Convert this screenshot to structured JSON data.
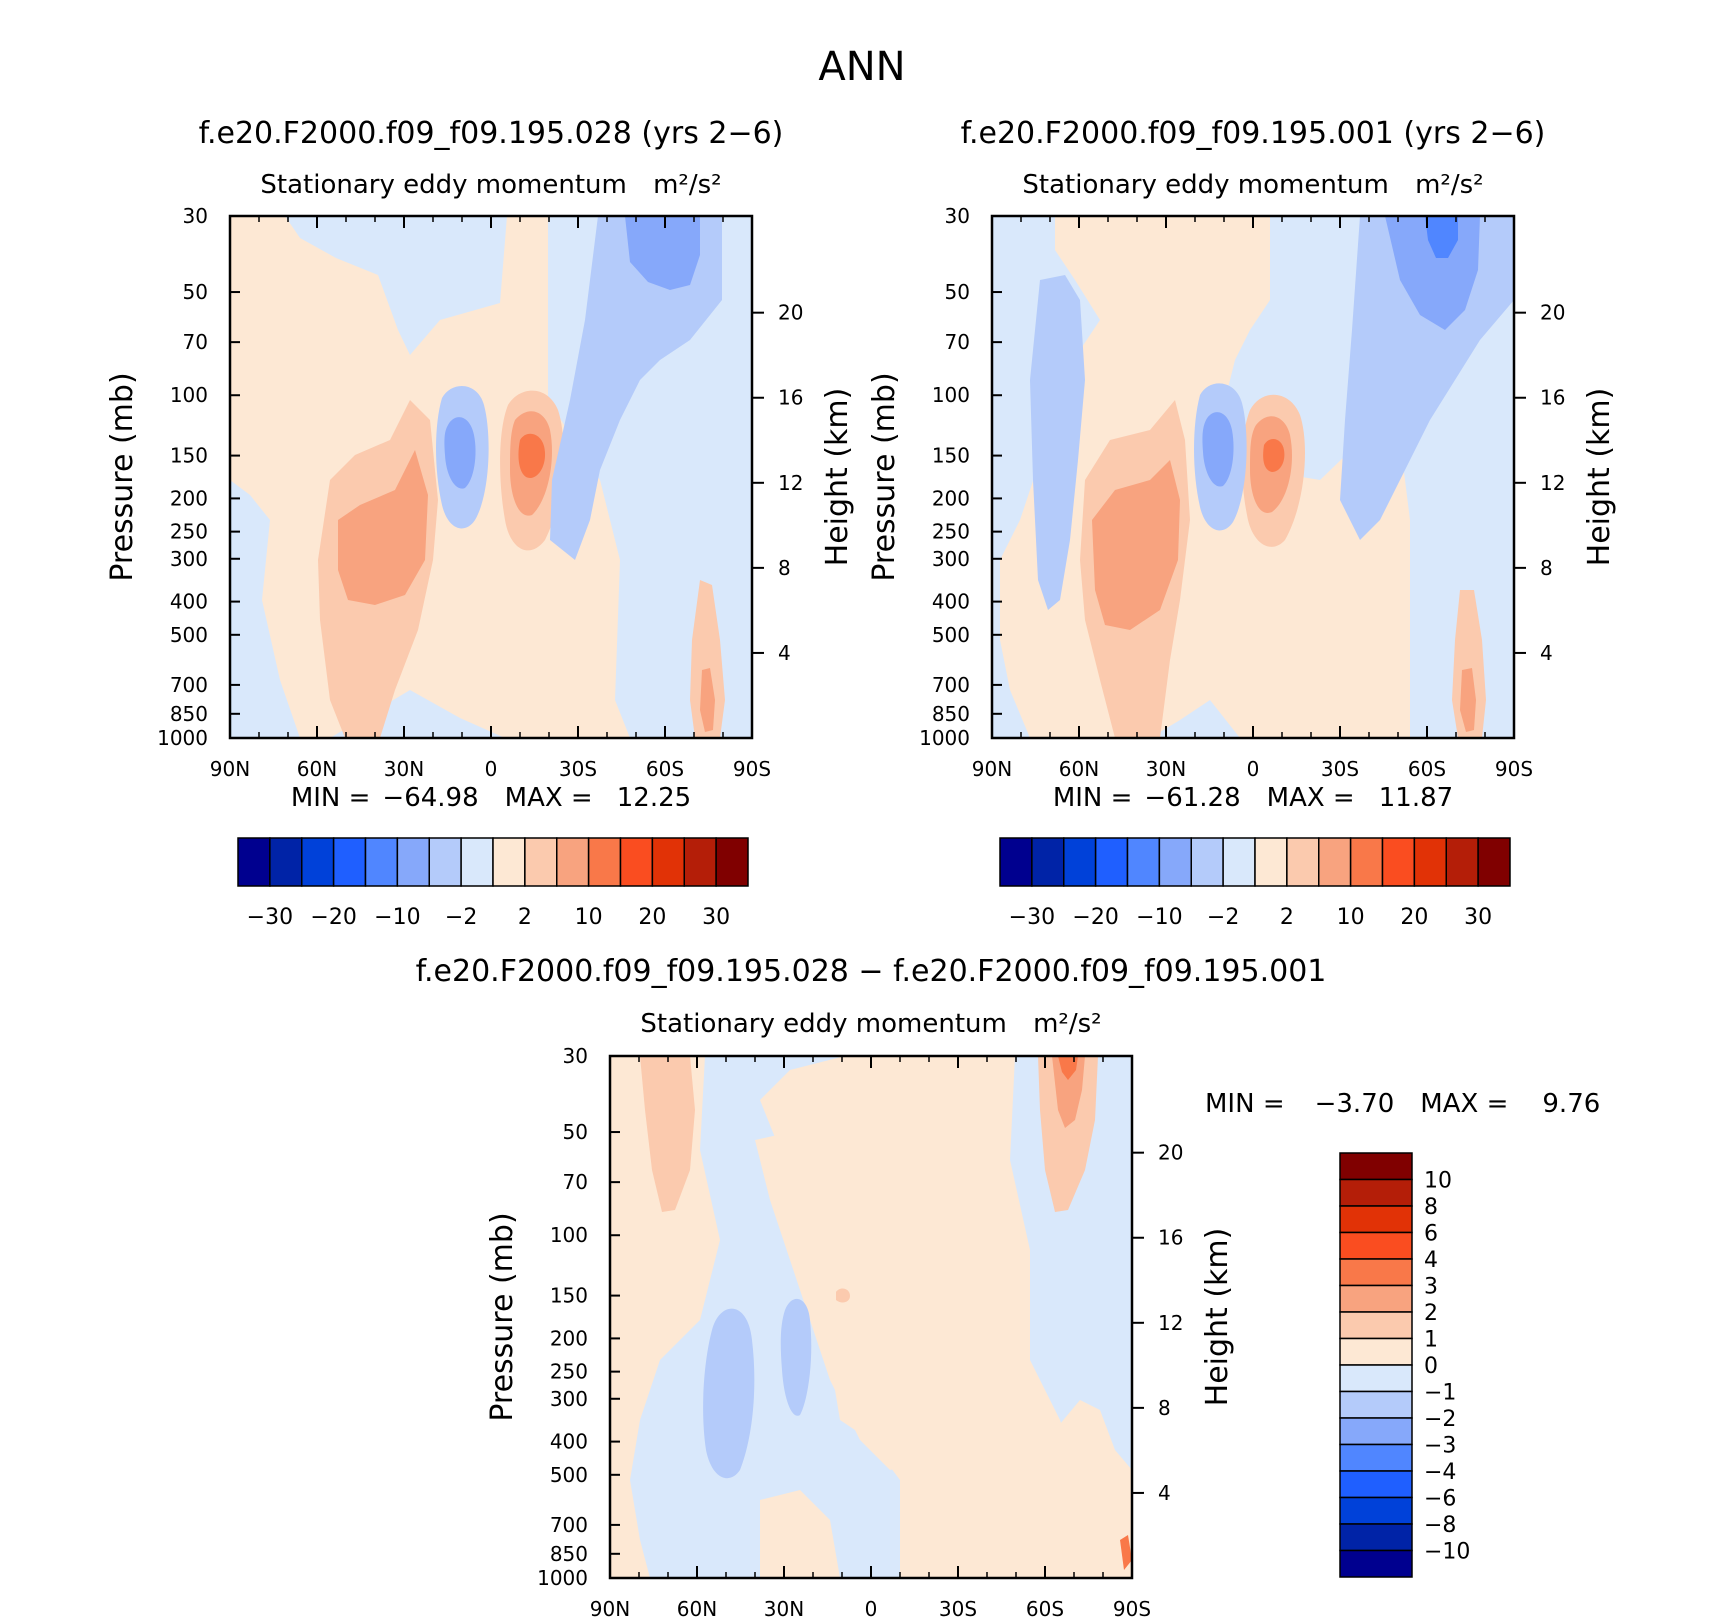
{
  "page_title": "ANN",
  "panels": [
    {
      "id": "case",
      "title": "f.e20.F2000.f09_f09.195.028 (yrs 2−6)",
      "subtitle": "Stationary eddy momentum",
      "units": "m²/s²",
      "min_label": "MIN =",
      "min_value": "−64.98",
      "max_label": "MAX =",
      "max_value": "12.25",
      "colorbar_labels": [
        "−30",
        "−20",
        "−10",
        "−2",
        "2",
        "10",
        "20",
        "30"
      ]
    },
    {
      "id": "control",
      "title": "f.e20.F2000.f09_f09.195.001 (yrs 2−6)",
      "subtitle": "Stationary eddy momentum",
      "units": "m²/s²",
      "min_label": "MIN =",
      "min_value": "−61.28",
      "max_label": "MAX =",
      "max_value": "11.87",
      "colorbar_labels": [
        "−30",
        "−20",
        "−10",
        "−2",
        "2",
        "10",
        "20",
        "30"
      ]
    },
    {
      "id": "difference",
      "title": "f.e20.F2000.f09_f09.195.028 − f.e20.F2000.f09_f09.195.001",
      "subtitle": "Stationary eddy momentum",
      "units": "m²/s²",
      "min_label": "MIN =",
      "min_value": "−3.70",
      "max_label": "MAX =",
      "max_value": "9.76",
      "colorbar_labels": [
        "10",
        "8",
        "6",
        "4",
        "3",
        "2",
        "1",
        "0",
        "−1",
        "−2",
        "−3",
        "−4",
        "−6",
        "−8",
        "−10"
      ]
    }
  ],
  "chart_data": [
    {
      "type": "heatmap",
      "title": "f.e20.F2000.f09_f09.195.028 (yrs 2−6)",
      "xlabel": "",
      "ylabel": "Pressure (mb)",
      "y2label": "Height (km)",
      "x_ticks": [
        "90N",
        "60N",
        "30N",
        "0",
        "30S",
        "60S",
        "90S"
      ],
      "xlim": [
        90,
        -90
      ],
      "y_ticks": [
        30,
        50,
        70,
        100,
        150,
        200,
        250,
        300,
        400,
        500,
        700,
        850,
        1000
      ],
      "ylim": [
        1000,
        30
      ],
      "y_scale": "log",
      "y2_ticks": [
        4,
        8,
        12,
        16,
        20
      ],
      "min": -64.98,
      "max": 12.25,
      "features": [
        {
          "lat": 40,
          "p": 300,
          "value": 10,
          "lat_width": 14,
          "p_span": 1.4
        },
        {
          "lat": 35,
          "p": 200,
          "value": 5,
          "lat_width": 22,
          "p_span": 2.2
        },
        {
          "lat": -10,
          "p": 150,
          "value": 20,
          "lat_width": 8,
          "p_span": 0.5
        },
        {
          "lat": -10,
          "p": 150,
          "value": 10,
          "lat_width": 14,
          "p_span": 0.9
        },
        {
          "lat": 10,
          "p": 150,
          "value": -10,
          "lat_width": 8,
          "p_span": 0.5
        },
        {
          "lat": 10,
          "p": 150,
          "value": -2,
          "lat_width": 14,
          "p_span": 1.0
        },
        {
          "lat": -60,
          "p": 35,
          "value": -10,
          "lat_width": 16,
          "p_span": 0.6
        },
        {
          "lat": -50,
          "p": 100,
          "value": -2,
          "lat_width": 16,
          "p_span": 2.5
        },
        {
          "lat": -75,
          "p": 800,
          "value": 10,
          "lat_width": 6,
          "p_span": 0.6
        }
      ]
    },
    {
      "type": "heatmap",
      "title": "f.e20.F2000.f09_f09.195.001 (yrs 2−6)",
      "xlabel": "",
      "ylabel": "Pressure (mb)",
      "y2label": "Height (km)",
      "x_ticks": [
        "90N",
        "60N",
        "30N",
        "0",
        "30S",
        "60S",
        "90S"
      ],
      "xlim": [
        90,
        -90
      ],
      "y_ticks": [
        30,
        50,
        70,
        100,
        150,
        200,
        250,
        300,
        400,
        500,
        700,
        850,
        1000
      ],
      "ylim": [
        1000,
        30
      ],
      "y_scale": "log",
      "y2_ticks": [
        4,
        8,
        12,
        16,
        20
      ],
      "min": -61.28,
      "max": 11.87,
      "features": [
        {
          "lat": 40,
          "p": 300,
          "value": 10,
          "lat_width": 14,
          "p_span": 1.4
        },
        {
          "lat": 30,
          "p": 200,
          "value": 20,
          "lat_width": 4,
          "p_span": 0.2
        },
        {
          "lat": 35,
          "p": 200,
          "value": 5,
          "lat_width": 22,
          "p_span": 2.2
        },
        {
          "lat": -10,
          "p": 150,
          "value": 20,
          "lat_width": 8,
          "p_span": 0.5
        },
        {
          "lat": -10,
          "p": 150,
          "value": 10,
          "lat_width": 14,
          "p_span": 0.9
        },
        {
          "lat": 10,
          "p": 150,
          "value": -20,
          "lat_width": 4,
          "p_span": 0.2
        },
        {
          "lat": 10,
          "p": 150,
          "value": -2,
          "lat_width": 14,
          "p_span": 1.0
        },
        {
          "lat": -65,
          "p": 35,
          "value": -10,
          "lat_width": 14,
          "p_span": 0.6
        },
        {
          "lat": -50,
          "p": 100,
          "value": -2,
          "lat_width": 18,
          "p_span": 2.5
        },
        {
          "lat": 70,
          "p": 200,
          "value": -2,
          "lat_width": 10,
          "p_span": 2.0
        },
        {
          "lat": -75,
          "p": 800,
          "value": 10,
          "lat_width": 6,
          "p_span": 0.6
        }
      ]
    },
    {
      "type": "heatmap",
      "title": "f.e20.F2000.f09_f09.195.028 − f.e20.F2000.f09_f09.195.001",
      "xlabel": "",
      "ylabel": "Pressure (mb)",
      "y2label": "Height (km)",
      "x_ticks": [
        "90N",
        "60N",
        "30N",
        "0",
        "30S",
        "60S",
        "90S"
      ],
      "xlim": [
        90,
        -90
      ],
      "y_ticks": [
        30,
        50,
        70,
        100,
        150,
        200,
        250,
        300,
        400,
        500,
        700,
        850,
        1000
      ],
      "ylim": [
        1000,
        30
      ],
      "y2_ticks": [
        4,
        8,
        12,
        16,
        20
      ],
      "y_scale": "log",
      "min": -3.7,
      "max": 9.76,
      "features": [
        {
          "lat": -70,
          "p": 35,
          "value": 3,
          "lat_width": 6,
          "p_span": 0.5
        },
        {
          "lat": -68,
          "p": 55,
          "value": 2,
          "lat_width": 10,
          "p_span": 1.0
        },
        {
          "lat": 75,
          "p": 60,
          "value": 1,
          "lat_width": 8,
          "p_span": 1.2
        },
        {
          "lat": 50,
          "p": 300,
          "value": -2,
          "lat_width": 8,
          "p_span": 1.0
        },
        {
          "lat": 25,
          "p": 250,
          "value": -2,
          "lat_width": 5,
          "p_span": 0.6
        },
        {
          "lat": 10,
          "p": 150,
          "value": 2,
          "lat_width": 3,
          "p_span": 0.1
        },
        {
          "lat": -88,
          "p": 900,
          "value": 3,
          "lat_width": 3,
          "p_span": 0.3
        }
      ]
    }
  ],
  "colors": {
    "main_levels": [
      "#00008f",
      "#0023a7",
      "#0041d9",
      "#1f5fff",
      "#5086ff",
      "#86a8fa",
      "#b4cbfa",
      "#d9e8fb",
      "#fde8d4",
      "#fbcaae",
      "#f8a37f",
      "#f97849",
      "#fa4d20",
      "#e13206",
      "#b41e08",
      "#800000"
    ],
    "diff_levels": [
      "#00008f",
      "#0023a7",
      "#0041d9",
      "#1f5fff",
      "#5086ff",
      "#86a8fa",
      "#b4cbfa",
      "#d9e8fb",
      "#fde8d4",
      "#fbcaae",
      "#f8a37f",
      "#f97849",
      "#fa4d20",
      "#e13206",
      "#b41e08",
      "#800000"
    ]
  }
}
